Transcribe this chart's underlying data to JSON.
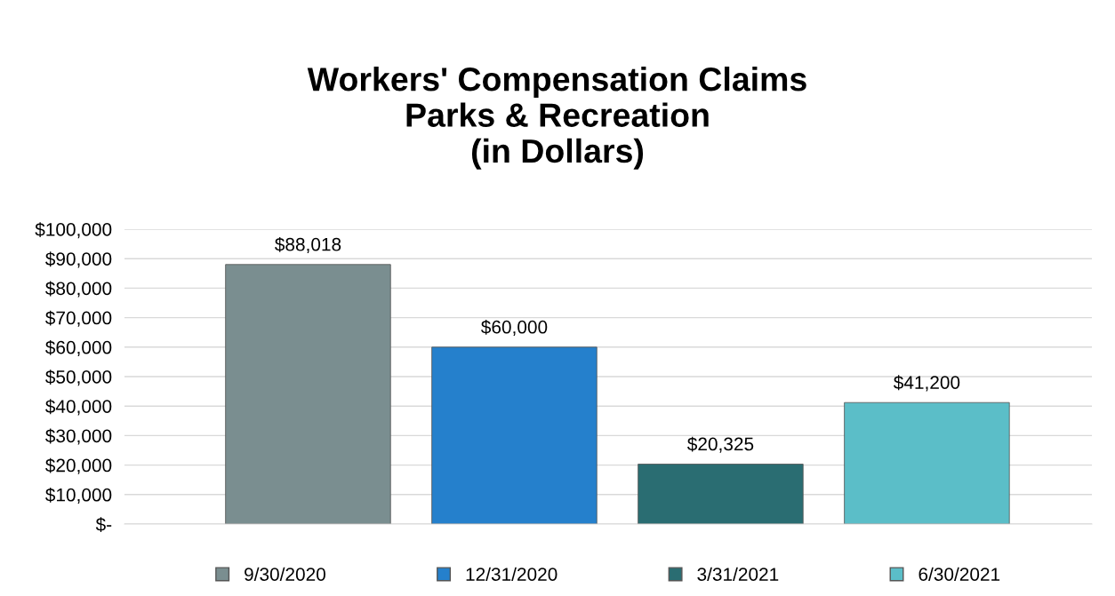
{
  "chart_data": {
    "type": "bar",
    "title": "Workers' Compensation Claims\nParks & Recreation\n(in Dollars)",
    "categories": [
      null
    ],
    "series": [
      {
        "name": "9/30/2020",
        "color": "#7a8e90",
        "values": [
          88018
        ],
        "value_labels": [
          "$88,018"
        ]
      },
      {
        "name": "12/31/2020",
        "color": "#2580cc",
        "values": [
          60000
        ],
        "value_labels": [
          "$60,000"
        ]
      },
      {
        "name": "3/31/2021",
        "color": "#2a6d72",
        "values": [
          20325
        ],
        "value_labels": [
          "$20,325"
        ]
      },
      {
        "name": "6/30/2021",
        "color": "#5bbec8",
        "values": [
          41200
        ],
        "value_labels": [
          "$41,200"
        ]
      }
    ],
    "ylim": [
      0,
      100000
    ],
    "yticks": [
      {
        "value": 0,
        "label": "$-"
      },
      {
        "value": 10000,
        "label": "$10,000"
      },
      {
        "value": 20000,
        "label": "$20,000"
      },
      {
        "value": 30000,
        "label": "$30,000"
      },
      {
        "value": 40000,
        "label": "$40,000"
      },
      {
        "value": 50000,
        "label": "$50,000"
      },
      {
        "value": 60000,
        "label": "$60,000"
      },
      {
        "value": 70000,
        "label": "$70,000"
      },
      {
        "value": 80000,
        "label": "$80,000"
      },
      {
        "value": 90000,
        "label": "$90,000"
      },
      {
        "value": 100000,
        "label": "$100,000"
      }
    ],
    "grid": "y",
    "legend": "bottom",
    "tick_labels": "y"
  }
}
